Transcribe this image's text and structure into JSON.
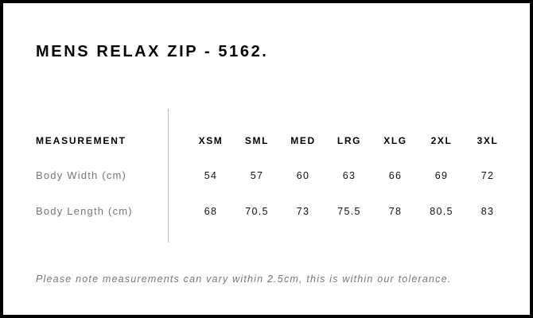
{
  "title": "MENS RELAX ZIP - 5162.",
  "table": {
    "header_label": "MEASUREMENT",
    "sizes": [
      "XSM",
      "SML",
      "MED",
      "LRG",
      "XLG",
      "2XL",
      "3XL"
    ],
    "rows": [
      {
        "label": "Body Width (cm)",
        "values": [
          "54",
          "57",
          "60",
          "63",
          "66",
          "69",
          "72"
        ]
      },
      {
        "label": "Body Length (cm)",
        "values": [
          "68",
          "70.5",
          "73",
          "75.5",
          "78",
          "80.5",
          "83"
        ]
      }
    ]
  },
  "note": "Please note measurements can vary within 2.5cm, this is within our tolerance."
}
